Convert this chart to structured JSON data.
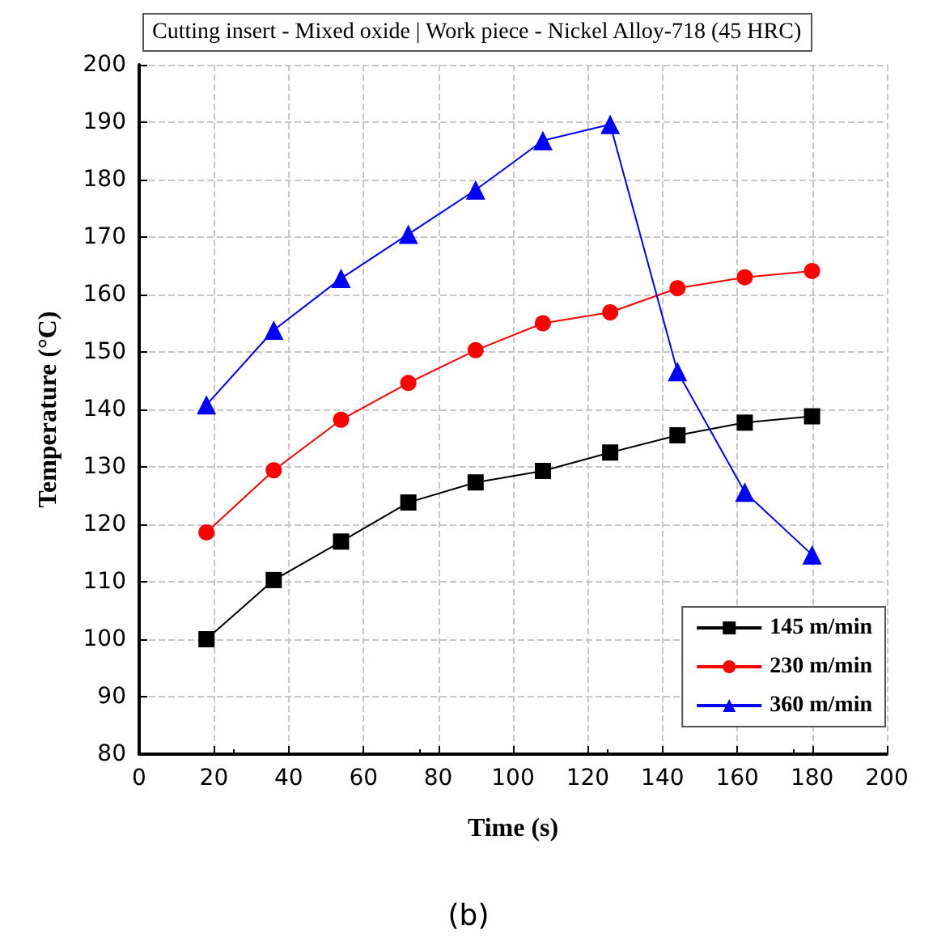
{
  "chart_data": {
    "type": "line",
    "title": "Cutting insert - Mixed oxide | Work piece - Nickel Alloy-718 (45 HRC)",
    "xlabel": "Time (s)",
    "ylabel": "Temperature (°C)",
    "annotations": [
      "(b)"
    ],
    "x": [
      18,
      36,
      54,
      72,
      90,
      108,
      126,
      144,
      162,
      180
    ],
    "series": [
      {
        "name": "145 m/min",
        "color": "#000000",
        "marker": "square",
        "values": [
          100,
          110.3,
          117,
          123.8,
          127.3,
          129.3,
          132.5,
          135.5,
          137.7,
          138.8
        ]
      },
      {
        "name": "230 m/min",
        "color": "#ff0000",
        "marker": "circle",
        "values": [
          118.6,
          129.4,
          138.2,
          144.6,
          150.3,
          155,
          156.9,
          161.1,
          163,
          164.1
        ]
      },
      {
        "name": "360 m/min",
        "color": "#0000ff",
        "marker": "triangle",
        "values": [
          140.8,
          153.8,
          162.8,
          170.5,
          178.2,
          186.8,
          189.6,
          146.6,
          125.6,
          114.7
        ]
      }
    ],
    "xlim": [
      0,
      200
    ],
    "xticks": [
      0,
      20,
      40,
      60,
      80,
      100,
      120,
      140,
      160,
      180,
      200
    ],
    "ylim": [
      80,
      200
    ],
    "yticks": [
      80,
      90,
      100,
      110,
      120,
      130,
      140,
      150,
      160,
      170,
      180,
      190,
      200
    ],
    "grid": true,
    "legend": "bottom right",
    "line_style": "solid"
  }
}
